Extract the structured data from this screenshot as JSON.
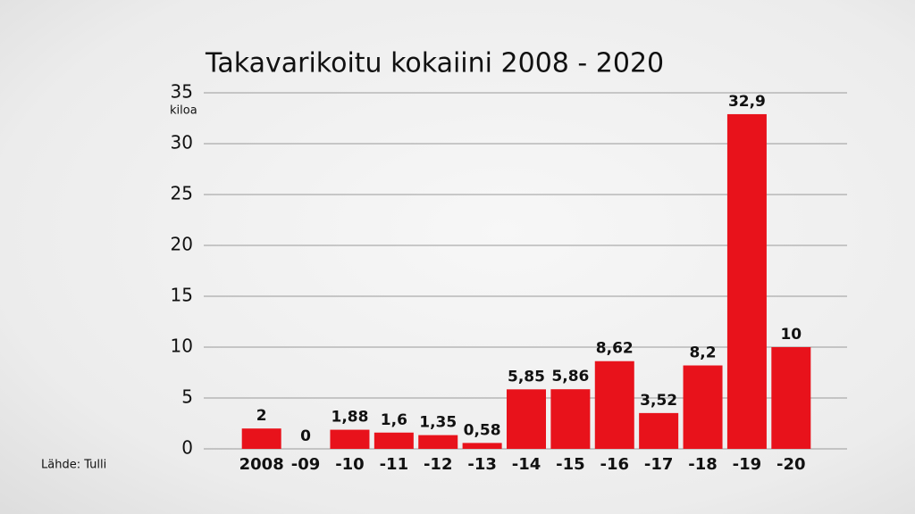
{
  "chart_data": {
    "type": "bar",
    "title": "Takavarikoitu kokaiini 2008 - 2020",
    "y_unit": "kiloa",
    "source": "Lähde: Tulli",
    "categories": [
      "2008",
      "-09",
      "-10",
      "-11",
      "-12",
      "-13",
      "-14",
      "-15",
      "-16",
      "-17",
      "-18",
      "-19",
      "-20"
    ],
    "values": [
      2,
      0,
      1.88,
      1.6,
      1.35,
      0.58,
      5.85,
      5.86,
      8.62,
      3.52,
      8.2,
      32.9,
      10
    ],
    "value_labels": [
      "2",
      "0",
      "1,88",
      "1,6",
      "1,35",
      "0,58",
      "5,85",
      "5,86",
      "8,62",
      "3,52",
      "8,2",
      "32,9",
      "10"
    ],
    "color": "#e8121b",
    "ylim": [
      0,
      35
    ],
    "yticks": [
      0,
      5,
      10,
      15,
      20,
      25,
      30,
      35
    ],
    "grid": true
  }
}
